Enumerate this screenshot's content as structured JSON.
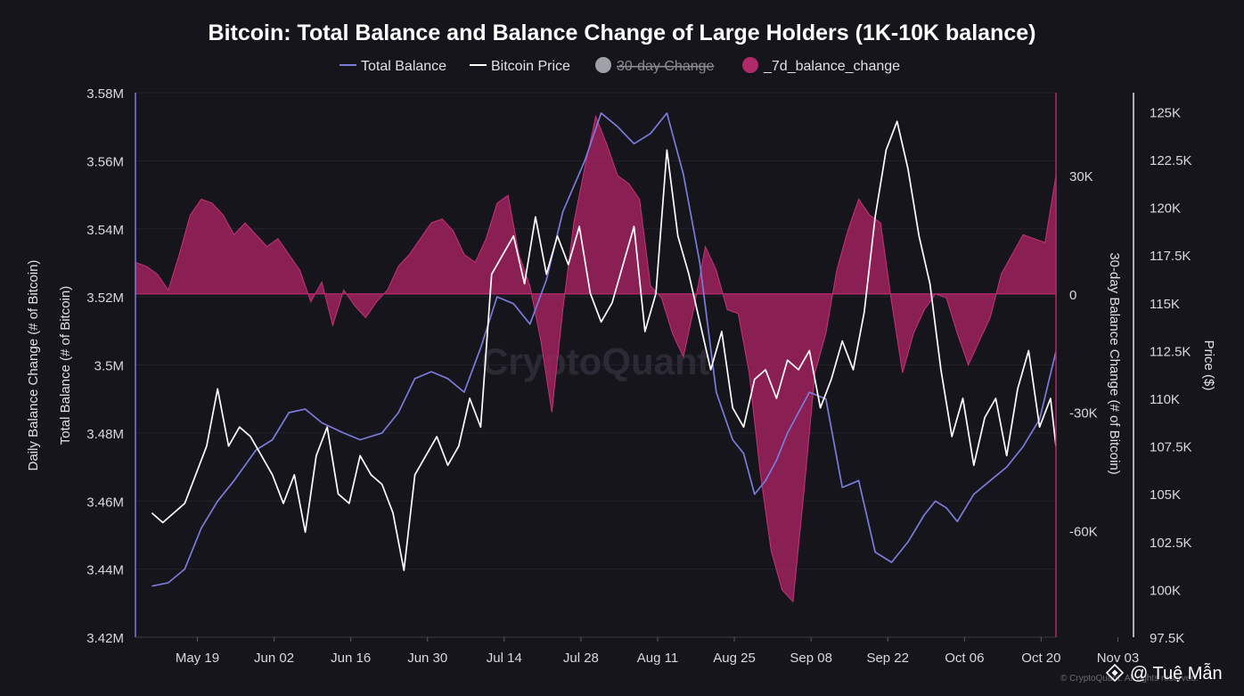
{
  "chart_data": {
    "type": "line",
    "title": "Bitcoin: Total Balance and Balance Change of Large Holders (1K-10K balance)",
    "legend": [
      {
        "label": "Total Balance",
        "kind": "line",
        "color": "#7b7bdc",
        "active": true
      },
      {
        "label": "Bitcoin Price",
        "kind": "line",
        "color": "#ffffff",
        "active": true
      },
      {
        "label": "30-day Change",
        "kind": "dot",
        "color": "#a0a0a8",
        "active": false
      },
      {
        "label": "_7d_balance_change",
        "kind": "dot",
        "color": "#b02a6a",
        "active": true
      }
    ],
    "x_ticks": [
      "May 19",
      "Jun 02",
      "Jun 16",
      "Jun 30",
      "Jul 14",
      "Jul 28",
      "Aug 11",
      "Aug 25",
      "Sep 08",
      "Sep 22",
      "Oct 06",
      "Oct 20",
      "Nov 03"
    ],
    "x_range_days": [
      -10,
      158
    ],
    "x_tick_days": [
      0,
      14,
      28,
      42,
      56,
      70,
      84,
      98,
      112,
      126,
      140,
      154,
      168
    ],
    "axes": {
      "left_outer_label": "Daily Balance Change (# of Bitcoin)",
      "left_label": "Total Balance (# of Bitcoin)",
      "left_ticks": [
        "3.42M",
        "3.44M",
        "3.46M",
        "3.48M",
        "3.5M",
        "3.52M",
        "3.54M",
        "3.56M",
        "3.58M"
      ],
      "left_range": [
        3420000,
        3580000
      ],
      "change_label": "30-day Balance Change (# of Bitcoin)",
      "change_ticks": [
        "30K",
        "0",
        "-30K",
        "-60K"
      ],
      "change_tick_values": [
        30000,
        0,
        -30000,
        -60000
      ],
      "change_range": [
        -87000,
        51000
      ],
      "price_label": "Price ($)",
      "price_ticks": [
        "97.5K",
        "100K",
        "102.5K",
        "105K",
        "107.5K",
        "110K",
        "112.5K",
        "115K",
        "117.5K",
        "120K",
        "122.5K",
        "125K"
      ],
      "price_tick_values": [
        97500,
        100000,
        102500,
        105000,
        107500,
        110000,
        112500,
        115000,
        117500,
        120000,
        122500,
        125000
      ],
      "price_range": [
        97500,
        126000
      ]
    },
    "series": [
      {
        "name": "Total Balance",
        "axis": "left",
        "x": [
          -7,
          -4,
          -1,
          2,
          5,
          8,
          12,
          15,
          18,
          21,
          24,
          28,
          31,
          35,
          38,
          41,
          44,
          47,
          50,
          53,
          56,
          59,
          62,
          65,
          68,
          72,
          75,
          78,
          81,
          84,
          87,
          90,
          93,
          96,
          99,
          101,
          103,
          105,
          107,
          109,
          111,
          113,
          116,
          119,
          122,
          125,
          128,
          131,
          134,
          136,
          138,
          140,
          143,
          146,
          149,
          152,
          155,
          158
        ],
        "values": [
          3435000,
          3436000,
          3440000,
          3452000,
          3460000,
          3466000,
          3475000,
          3478000,
          3486000,
          3487000,
          3483000,
          3480000,
          3478000,
          3480000,
          3486000,
          3496000,
          3498000,
          3496000,
          3492000,
          3505000,
          3520000,
          3518000,
          3512000,
          3525000,
          3545000,
          3560000,
          3574000,
          3570000,
          3565000,
          3568000,
          3574000,
          3556000,
          3530000,
          3492000,
          3478000,
          3474000,
          3462000,
          3466000,
          3472000,
          3480000,
          3486000,
          3492000,
          3490000,
          3464000,
          3466000,
          3445000,
          3442000,
          3448000,
          3456000,
          3460000,
          3458000,
          3454000,
          3462000,
          3466000,
          3470000,
          3476000,
          3484000,
          3504000
        ]
      },
      {
        "name": "Bitcoin Price",
        "axis": "price",
        "x": [
          -7,
          -5,
          -3,
          -1,
          1,
          3,
          5,
          7,
          9,
          11,
          13,
          15,
          17,
          19,
          21,
          23,
          25,
          27,
          29,
          31,
          33,
          35,
          37,
          39,
          41,
          43,
          45,
          47,
          49,
          51,
          53,
          55,
          57,
          59,
          61,
          63,
          65,
          67,
          69,
          71,
          73,
          75,
          77,
          79,
          81,
          83,
          85,
          87,
          89,
          91,
          93,
          95,
          97,
          99,
          101,
          103,
          105,
          107,
          109,
          111,
          113,
          115,
          117,
          119,
          121,
          123,
          125,
          127,
          129,
          131,
          133,
          135,
          137,
          139,
          141,
          143,
          145,
          147,
          149,
          151,
          153,
          155,
          157,
          158
        ],
        "values": [
          104000,
          103500,
          104000,
          104500,
          106000,
          107500,
          110500,
          107500,
          108500,
          108000,
          107000,
          106000,
          104500,
          106000,
          103000,
          107000,
          108500,
          105000,
          104500,
          107000,
          106000,
          105500,
          104000,
          101000,
          106000,
          107000,
          108000,
          106500,
          107500,
          110000,
          108500,
          116500,
          117500,
          118500,
          116000,
          119500,
          116500,
          118500,
          117000,
          119000,
          115500,
          114000,
          115000,
          117000,
          119000,
          113500,
          115500,
          123000,
          118500,
          116500,
          114000,
          111500,
          113500,
          109500,
          108500,
          111000,
          111500,
          110000,
          112000,
          111500,
          112500,
          109500,
          111000,
          113000,
          111500,
          114500,
          119500,
          123000,
          124500,
          122000,
          118500,
          116000,
          111500,
          108000,
          110000,
          106500,
          109000,
          110000,
          107000,
          110500,
          112500,
          108500,
          110000,
          107500
        ]
      },
      {
        "name": "_7d_balance_change",
        "axis": "change",
        "x": [
          -10,
          -8,
          -6,
          -4,
          -2,
          0,
          2,
          4,
          6,
          8,
          10,
          12,
          14,
          16,
          18,
          20,
          22,
          24,
          26,
          28,
          30,
          32,
          34,
          36,
          38,
          40,
          42,
          44,
          46,
          48,
          50,
          52,
          54,
          56,
          58,
          60,
          62,
          64,
          66,
          68,
          70,
          72,
          74,
          76,
          78,
          80,
          82,
          84,
          86,
          88,
          90,
          92,
          94,
          96,
          98,
          100,
          102,
          104,
          106,
          108,
          110,
          112,
          114,
          116,
          118,
          120,
          122,
          124,
          126,
          128,
          130,
          132,
          134,
          136,
          138,
          140,
          142,
          144,
          146,
          148,
          150,
          152,
          154,
          156,
          158
        ],
        "values": [
          8000,
          7000,
          5000,
          1000,
          10000,
          20000,
          24000,
          23000,
          20000,
          15000,
          18000,
          15000,
          12000,
          14000,
          10000,
          6000,
          -2000,
          3000,
          -8000,
          1000,
          -3000,
          -6000,
          -2000,
          1000,
          7000,
          10000,
          14000,
          18000,
          19000,
          16000,
          10000,
          8000,
          14000,
          23000,
          25000,
          10000,
          2000,
          -12000,
          -30000,
          -4000,
          18000,
          32000,
          45000,
          38000,
          30000,
          28000,
          24000,
          2000,
          -1000,
          -10000,
          -16000,
          -3000,
          12000,
          6000,
          -4000,
          -5000,
          -20000,
          -45000,
          -65000,
          -75000,
          -78000,
          -50000,
          -20000,
          -10000,
          6000,
          16000,
          24000,
          20000,
          18000,
          -2000,
          -20000,
          -10000,
          -4000,
          0,
          -1000,
          -10000,
          -18000,
          -12000,
          -6000,
          5000,
          10000,
          15000,
          14000,
          13000,
          30000
        ]
      }
    ]
  },
  "watermark": "CryptoQuant",
  "credit": "© CryptoQuant. All rights reserved.",
  "social": {
    "handle": "@ Tuệ Mẫn",
    "icon": "binance-logo"
  }
}
